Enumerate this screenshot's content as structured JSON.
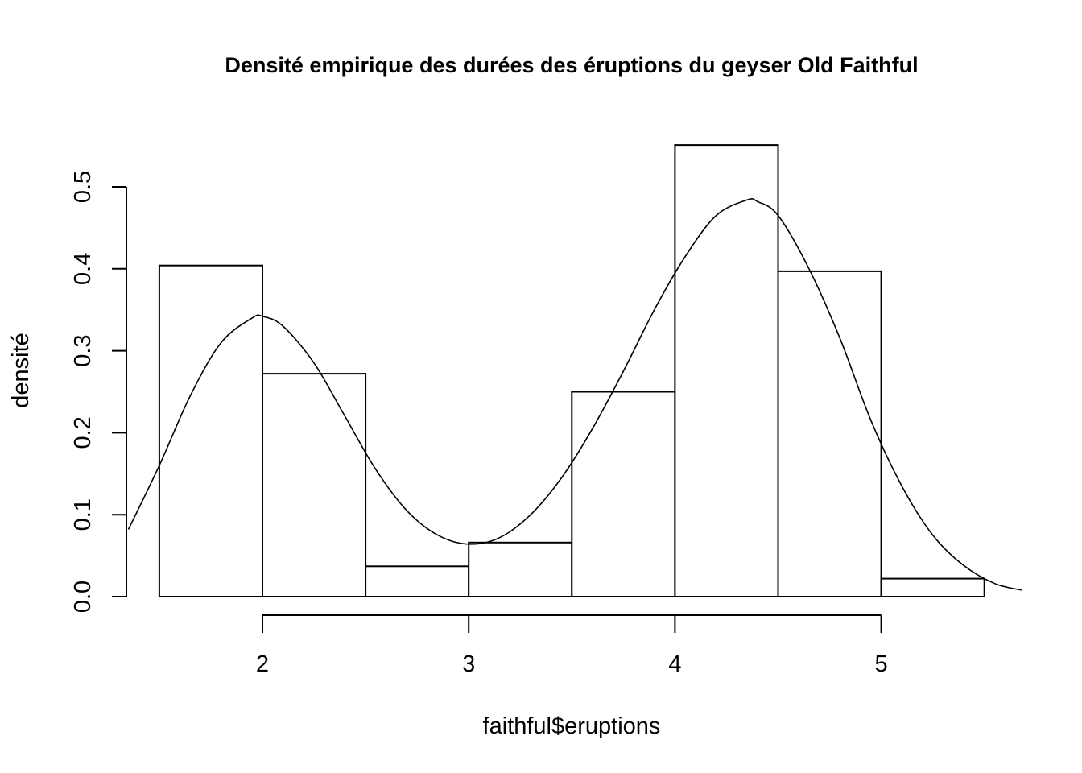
{
  "chart_data": {
    "type": "bar",
    "title": "Densité empirique des durées des éruptions du geyser Old Faithful",
    "xlabel": "faithful$eruptions",
    "ylabel": "densité",
    "bins": [
      {
        "x0": 1.5,
        "x1": 2.0,
        "density": 0.404
      },
      {
        "x0": 2.0,
        "x1": 2.5,
        "density": 0.272
      },
      {
        "x0": 2.5,
        "x1": 3.0,
        "density": 0.037
      },
      {
        "x0": 3.0,
        "x1": 3.5,
        "density": 0.066
      },
      {
        "x0": 3.5,
        "x1": 4.0,
        "density": 0.25
      },
      {
        "x0": 4.0,
        "x1": 4.5,
        "density": 0.551
      },
      {
        "x0": 4.5,
        "x1": 5.0,
        "density": 0.397
      },
      {
        "x0": 5.0,
        "x1": 5.5,
        "density": 0.022
      }
    ],
    "density_curve": {
      "x": [
        1.35,
        1.5,
        1.65,
        1.8,
        1.95,
        2.0,
        2.1,
        2.25,
        2.4,
        2.55,
        2.7,
        2.85,
        3.0,
        3.15,
        3.3,
        3.45,
        3.6,
        3.75,
        3.9,
        4.05,
        4.2,
        4.35,
        4.4,
        4.5,
        4.65,
        4.8,
        4.95,
        5.1,
        5.25,
        5.4,
        5.55,
        5.68
      ],
      "y": [
        0.082,
        0.16,
        0.245,
        0.31,
        0.34,
        0.342,
        0.33,
        0.285,
        0.22,
        0.155,
        0.105,
        0.075,
        0.064,
        0.072,
        0.1,
        0.145,
        0.205,
        0.275,
        0.35,
        0.415,
        0.465,
        0.484,
        0.482,
        0.465,
        0.4,
        0.315,
        0.215,
        0.135,
        0.075,
        0.038,
        0.016,
        0.008
      ]
    },
    "xlim": [
      1.35,
      5.68
    ],
    "ylim": [
      0,
      0.5
    ],
    "x_ticks": [
      2,
      3,
      4,
      5
    ],
    "x_tick_labels": [
      "2",
      "3",
      "4",
      "5"
    ],
    "y_ticks": [
      0.0,
      0.1,
      0.2,
      0.3,
      0.4,
      0.5
    ],
    "y_tick_labels": [
      "0.0",
      "0.1",
      "0.2",
      "0.3",
      "0.4",
      "0.5"
    ],
    "grid": false,
    "legend": "none"
  }
}
